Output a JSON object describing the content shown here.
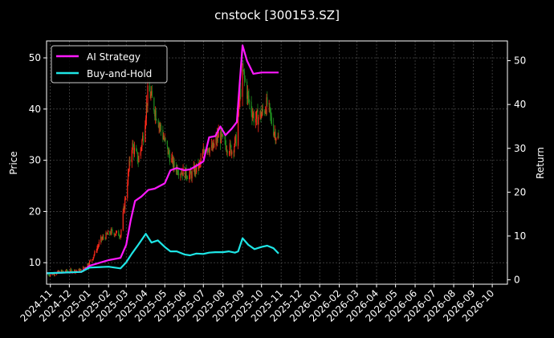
{
  "chart_data": {
    "type": "line",
    "title": "cnstock [300153.SZ]",
    "ylabel": "Price",
    "y2label": "Return",
    "background": "#000000",
    "grid": true,
    "legend_placement": "top-left",
    "x_tick_labels": [
      "2024-11",
      "2024-12",
      "2025-01",
      "2025-02",
      "2025-03",
      "2025-04",
      "2025-05",
      "2025-06",
      "2025-07",
      "2025-08",
      "2025-09",
      "2025-10",
      "2025-11",
      "2025-12",
      "2026-01",
      "2026-02",
      "2026-03",
      "2026-04",
      "2026-05",
      "2026-06",
      "2026-07",
      "2026-08",
      "2026-09",
      "2026-10"
    ],
    "xlim": [
      "2024-10-26",
      "2026-10-25"
    ],
    "y_ticks": [
      10,
      20,
      30,
      40,
      50
    ],
    "ylim": [
      5.8,
      53.3
    ],
    "y2_ticks": [
      0,
      10,
      20,
      30,
      40,
      50
    ],
    "y2lim": [
      -1,
      54.5
    ],
    "candle_colors": {
      "up": "#ff2a1a",
      "down": "#1e8a1e"
    },
    "price_anchors": {
      "x": [
        "2024-10-29",
        "2024-11-15",
        "2024-12-01",
        "2024-12-20",
        "2025-01-05",
        "2025-01-20",
        "2025-02-05",
        "2025-02-20",
        "2025-03-01",
        "2025-03-10",
        "2025-03-20",
        "2025-03-28",
        "2025-04-05",
        "2025-04-15",
        "2025-04-25",
        "2025-05-05",
        "2025-05-15",
        "2025-05-25",
        "2025-06-10",
        "2025-06-25",
        "2025-07-05",
        "2025-07-15",
        "2025-07-25",
        "2025-08-05",
        "2025-08-15",
        "2025-08-22",
        "2025-08-28",
        "2025-09-02",
        "2025-09-10",
        "2025-09-20",
        "2025-10-01",
        "2025-10-10",
        "2025-10-20",
        "2025-10-28"
      ],
      "close": [
        7.6,
        8.2,
        8.4,
        8.5,
        10.5,
        14.5,
        16.0,
        15.5,
        24,
        33,
        30,
        35,
        44,
        40,
        36,
        32,
        29,
        28,
        27,
        29,
        33,
        32,
        35,
        33,
        32,
        34,
        43,
        47,
        42,
        38,
        39,
        41,
        36,
        34
      ]
    },
    "series": [
      {
        "name": "AI Strategy",
        "color": "#ff19ff",
        "axis": "right",
        "x": [
          "2024-10-26",
          "2024-12-20",
          "2025-01-02",
          "2025-02-01",
          "2025-02-20",
          "2025-03-01",
          "2025-03-08",
          "2025-03-15",
          "2025-03-25",
          "2025-04-05",
          "2025-04-15",
          "2025-05-01",
          "2025-05-10",
          "2025-05-20",
          "2025-06-01",
          "2025-06-10",
          "2025-06-20",
          "2025-07-01",
          "2025-07-10",
          "2025-07-20",
          "2025-07-28",
          "2025-08-05",
          "2025-08-15",
          "2025-08-23",
          "2025-08-27",
          "2025-09-01",
          "2025-09-08",
          "2025-09-18",
          "2025-10-01",
          "2025-10-20",
          "2025-10-28"
        ],
        "y": [
          1.5,
          1.8,
          3.2,
          4.5,
          5.0,
          8.0,
          13.5,
          18.0,
          19.0,
          20.5,
          20.8,
          22.0,
          25.0,
          25.5,
          25.0,
          25.2,
          26.0,
          27.0,
          32.5,
          32.8,
          35.0,
          33.0,
          34.5,
          36.0,
          44.0,
          53.5,
          50.0,
          47.0,
          47.3,
          47.3,
          47.3
        ]
      },
      {
        "name": "Buy-and-Hold",
        "color": "#1ee6e6",
        "axis": "right",
        "x": [
          "2024-10-26",
          "2024-12-20",
          "2025-01-02",
          "2025-02-01",
          "2025-02-20",
          "2025-03-01",
          "2025-03-10",
          "2025-03-20",
          "2025-04-01",
          "2025-04-10",
          "2025-04-20",
          "2025-05-01",
          "2025-05-10",
          "2025-05-20",
          "2025-06-01",
          "2025-06-10",
          "2025-06-20",
          "2025-07-01",
          "2025-07-10",
          "2025-07-20",
          "2025-08-01",
          "2025-08-10",
          "2025-08-20",
          "2025-08-25",
          "2025-09-01",
          "2025-09-10",
          "2025-09-20",
          "2025-10-01",
          "2025-10-10",
          "2025-10-20",
          "2025-10-28"
        ],
        "y": [
          1.5,
          1.8,
          2.8,
          3.0,
          2.6,
          4.0,
          6.0,
          8.0,
          10.5,
          8.5,
          9.0,
          7.5,
          6.5,
          6.5,
          5.8,
          5.6,
          6.0,
          5.9,
          6.2,
          6.3,
          6.3,
          6.5,
          6.2,
          6.5,
          9.5,
          8.0,
          7.0,
          7.5,
          7.8,
          7.2,
          6.0
        ]
      }
    ]
  }
}
